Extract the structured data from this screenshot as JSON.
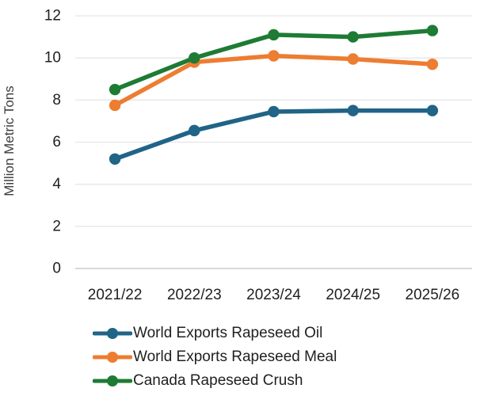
{
  "chart_data": {
    "type": "line",
    "title": "",
    "xlabel": "",
    "ylabel": "Million Metric Tons",
    "categories": [
      "2021/22",
      "2022/23",
      "2023/24",
      "2024/25",
      "2025/26"
    ],
    "yticks": [
      0,
      2,
      4,
      6,
      8,
      10,
      12
    ],
    "ylim": [
      0,
      12
    ],
    "grid": true,
    "legend_position": "bottom-left",
    "series": [
      {
        "name": "World Exports Rapeseed Oil",
        "color": "#206487",
        "values": [
          5.2,
          6.55,
          7.45,
          7.5,
          7.5
        ]
      },
      {
        "name": "World Exports Rapeseed Meal",
        "color": "#ED7D31",
        "values": [
          7.75,
          9.8,
          10.1,
          9.95,
          9.7
        ]
      },
      {
        "name": "Canada Rapeseed Crush",
        "color": "#1E7B34",
        "values": [
          8.5,
          10.0,
          11.1,
          11.0,
          11.3
        ]
      }
    ],
    "colors": {
      "gridline": "#e6e6e6",
      "zero_line": "#d8d8d8",
      "tick_text": "#212121",
      "axis_title_text": "#3d3d3d"
    }
  }
}
